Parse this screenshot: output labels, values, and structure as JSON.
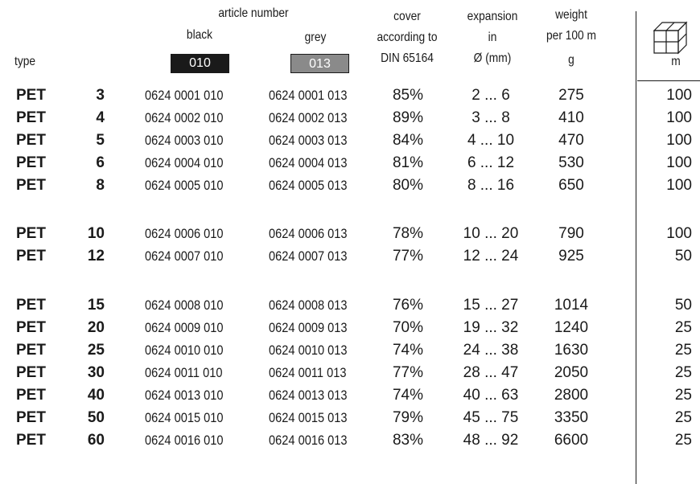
{
  "header": {
    "article_number": "article number",
    "black": "black",
    "grey": "grey",
    "black_code": "010",
    "grey_code": "013",
    "type": "type",
    "cover_line1": "cover",
    "cover_line2": "according to",
    "cover_line3": "DIN 65164",
    "expansion_line1": "expansion",
    "expansion_line2": "in",
    "expansion_line3": "Ø (mm)",
    "weight_line1": "weight",
    "weight_line2": "per 100 m",
    "weight_line3": "g",
    "length_unit": "m",
    "package_icon": "box-stack-icon"
  },
  "rows": [
    {
      "type": "PET",
      "size": "3",
      "black": "0624 0001 010",
      "grey": "0624 0001 013",
      "cover": "85%",
      "expansion": "2 ...  6",
      "weight": "275",
      "length": "100"
    },
    {
      "type": "PET",
      "size": "4",
      "black": "0624 0002 010",
      "grey": "0624 0002 013",
      "cover": "89%",
      "expansion": "3 ...  8",
      "weight": "410",
      "length": "100"
    },
    {
      "type": "PET",
      "size": "5",
      "black": "0624 0003 010",
      "grey": "0624 0003 013",
      "cover": "84%",
      "expansion": "4 ... 10",
      "weight": "470",
      "length": "100"
    },
    {
      "type": "PET",
      "size": "6",
      "black": "0624 0004 010",
      "grey": "0624 0004 013",
      "cover": "81%",
      "expansion": "6 ... 12",
      "weight": "530",
      "length": "100"
    },
    {
      "type": "PET",
      "size": "8",
      "black": "0624 0005 010",
      "grey": "0624 0005 013",
      "cover": "80%",
      "expansion": "8 ... 16",
      "weight": "650",
      "length": "100"
    },
    {
      "type": "PET",
      "size": "10",
      "black": "0624 0006 010",
      "grey": "0624 0006 013",
      "cover": "78%",
      "expansion": "10 ... 20",
      "weight": "790",
      "length": "100"
    },
    {
      "type": "PET",
      "size": "12",
      "black": "0624 0007 010",
      "grey": "0624 0007 013",
      "cover": "77%",
      "expansion": "12 ... 24",
      "weight": "925",
      "length": "50"
    },
    {
      "type": "PET",
      "size": "15",
      "black": "0624 0008 010",
      "grey": "0624 0008 013",
      "cover": "76%",
      "expansion": "15 ... 27",
      "weight": "1014",
      "length": "50"
    },
    {
      "type": "PET",
      "size": "20",
      "black": "0624 0009 010",
      "grey": "0624 0009 013",
      "cover": "70%",
      "expansion": "19 ... 32",
      "weight": "1240",
      "length": "25"
    },
    {
      "type": "PET",
      "size": "25",
      "black": "0624 0010 010",
      "grey": "0624 0010 013",
      "cover": "74%",
      "expansion": "24 ... 38",
      "weight": "1630",
      "length": "25"
    },
    {
      "type": "PET",
      "size": "30",
      "black": "0624 0011 010",
      "grey": "0624 0011 013",
      "cover": "77%",
      "expansion": "28 ... 47",
      "weight": "2050",
      "length": "25"
    },
    {
      "type": "PET",
      "size": "40",
      "black": "0624 0013 010",
      "grey": "0624 0013 013",
      "cover": "74%",
      "expansion": "40 ... 63",
      "weight": "2800",
      "length": "25"
    },
    {
      "type": "PET",
      "size": "50",
      "black": "0624 0015 010",
      "grey": "0624 0015 013",
      "cover": "79%",
      "expansion": "45 ... 75",
      "weight": "3350",
      "length": "25"
    },
    {
      "type": "PET",
      "size": "60",
      "black": "0624 0016 010",
      "grey": "0624 0016 013",
      "cover": "83%",
      "expansion": "48 ... 92",
      "weight": "6600",
      "length": "25"
    }
  ],
  "colors": {
    "black_swatch": "#1a1a1a",
    "grey_swatch": "#8a8a8a"
  }
}
